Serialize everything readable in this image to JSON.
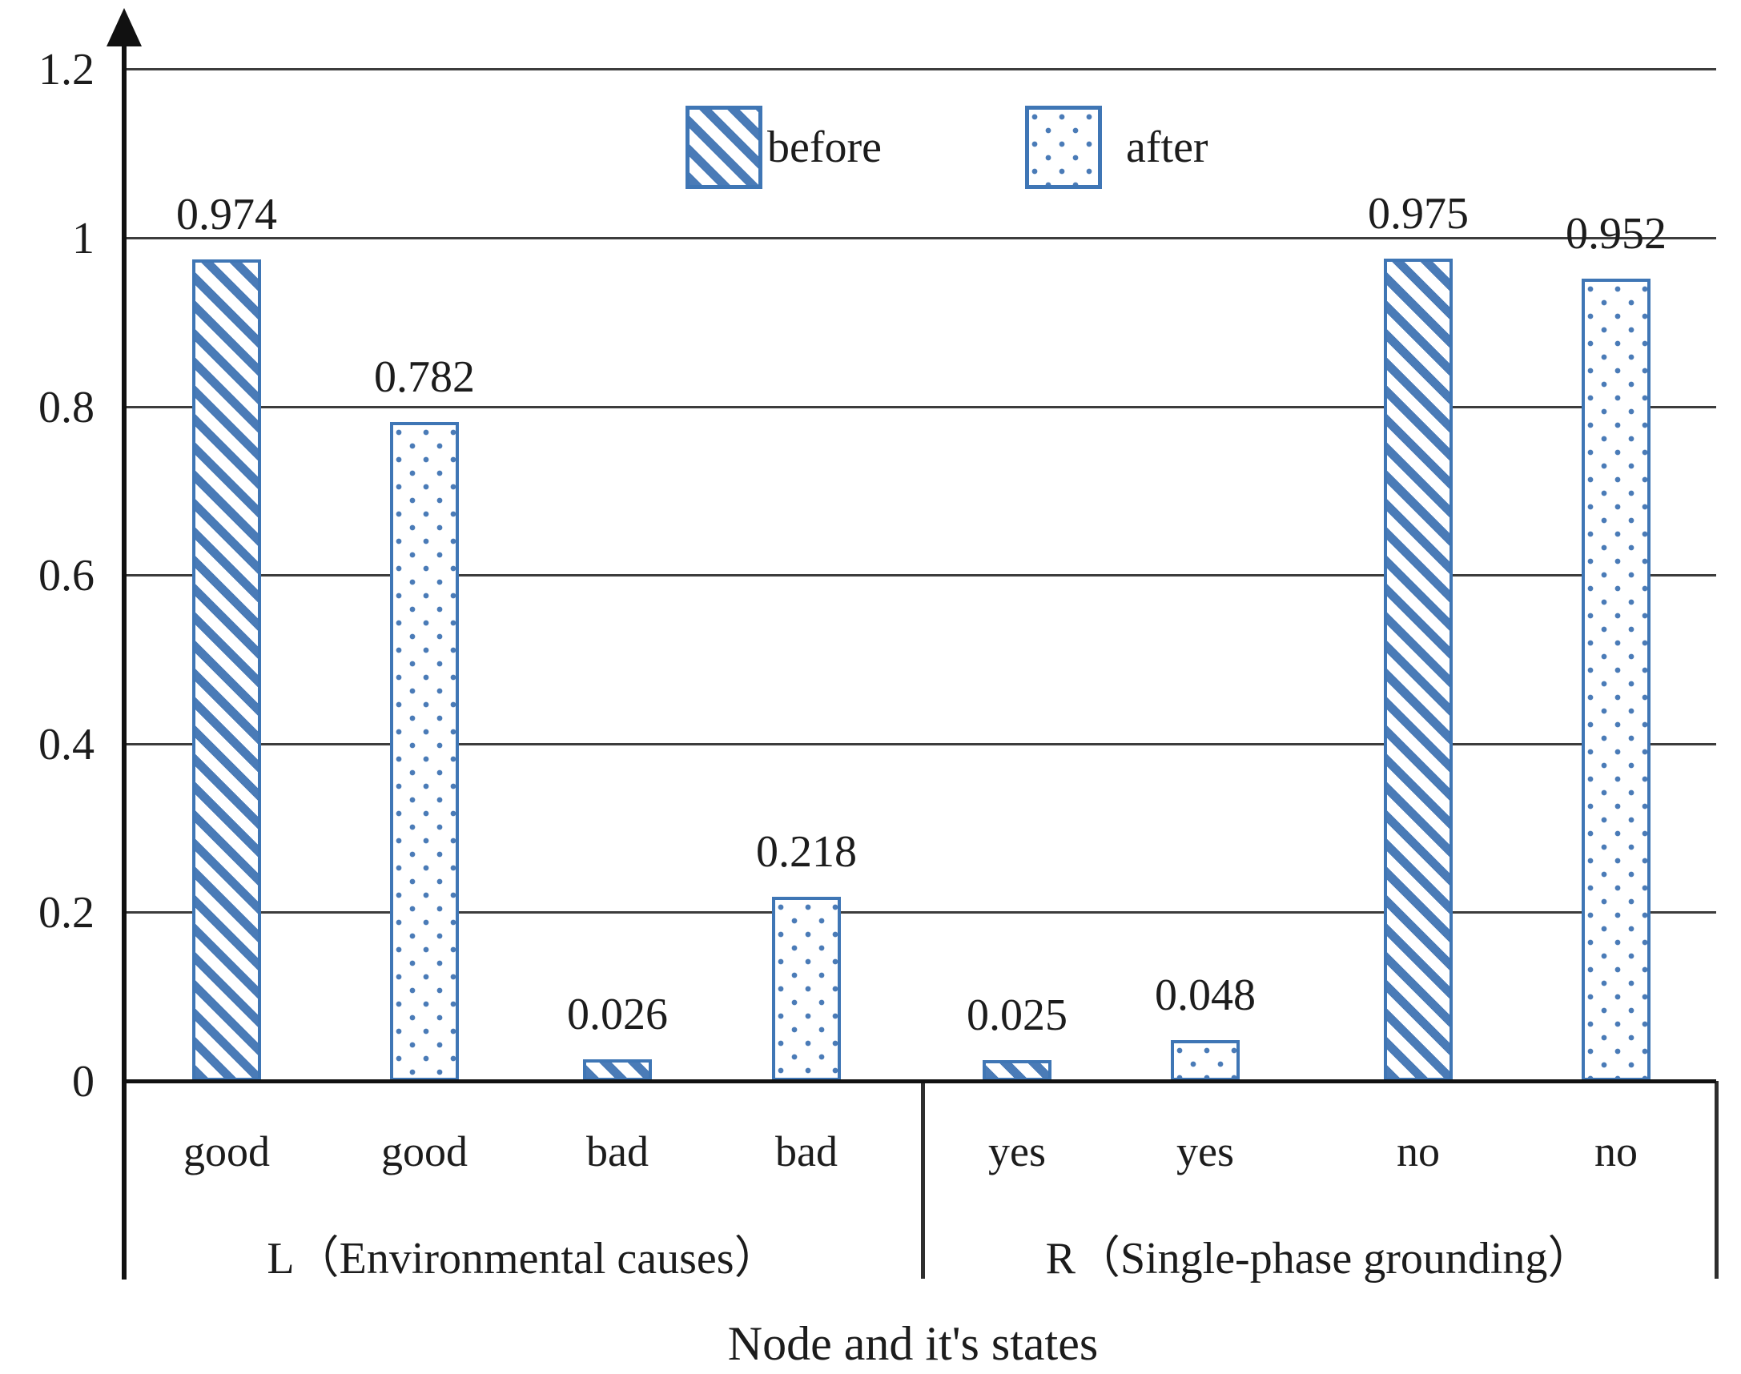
{
  "chart_data": {
    "type": "bar",
    "title": "",
    "xlabel": "Node and it's states",
    "ylabel": "",
    "ylim": [
      0,
      1.2
    ],
    "grid": "horizontal",
    "legend_position": "top-center-inside-plot",
    "yticks": [
      {
        "value": 1.2,
        "label": "1.2"
      },
      {
        "value": 1.0,
        "label": "1"
      },
      {
        "value": 0.8,
        "label": "0.8"
      },
      {
        "value": 0.6,
        "label": "0.6"
      },
      {
        "value": 0.4,
        "label": "0.4"
      },
      {
        "value": 0.2,
        "label": "0.2"
      },
      {
        "value": 0.0,
        "label": "0"
      }
    ],
    "legend": [
      {
        "label": "before",
        "pattern": "diagonal-hatch"
      },
      {
        "label": "after",
        "pattern": "dots"
      }
    ],
    "groups": [
      {
        "label": "L（Environmental causes）",
        "bars": [
          {
            "state": "good",
            "series": "before",
            "value": 0.974,
            "value_label": "0.974"
          },
          {
            "state": "good",
            "series": "after",
            "value": 0.782,
            "value_label": "0.782"
          },
          {
            "state": "bad",
            "series": "before",
            "value": 0.026,
            "value_label": "0.026"
          },
          {
            "state": "bad",
            "series": "after",
            "value": 0.218,
            "value_label": "0.218"
          }
        ]
      },
      {
        "label": "R（Single-phase grounding）",
        "bars": [
          {
            "state": "yes",
            "series": "before",
            "value": 0.025,
            "value_label": "0.025"
          },
          {
            "state": "yes",
            "series": "after",
            "value": 0.048,
            "value_label": "0.048"
          },
          {
            "state": "no",
            "series": "before",
            "value": 0.975,
            "value_label": "0.975"
          },
          {
            "state": "no",
            "series": "after",
            "value": 0.952,
            "value_label": "0.952"
          }
        ]
      }
    ],
    "colors": {
      "bar_blue": "#4a7bb7",
      "bar_border": "#3f76b5",
      "text": "#1c1c1c",
      "gridline": "#3c3c3c",
      "axis": "#111111"
    }
  }
}
